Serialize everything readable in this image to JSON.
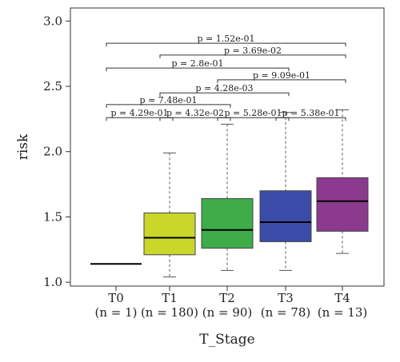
{
  "chart_data": {
    "type": "boxplot",
    "title": "",
    "xlabel": "T_Stage",
    "ylabel": "risk",
    "ylim": [
      0.97,
      3.1
    ],
    "yticks": [
      "1.0",
      "1.5",
      "2.0",
      "2.5",
      "3.0"
    ],
    "ytick_values": [
      1.0,
      1.5,
      2.0,
      2.5,
      3.0
    ],
    "groups": [
      {
        "name": "T0",
        "n_label": "(n = 1)",
        "color": "#000000",
        "min": 1.14,
        "q1": 1.14,
        "median": 1.14,
        "q3": 1.14,
        "max": 1.14,
        "single": true
      },
      {
        "name": "T1",
        "n_label": "(n = 180)",
        "color": "#c8d72a",
        "min": 1.04,
        "q1": 1.21,
        "median": 1.34,
        "q3": 1.53,
        "max": 1.99
      },
      {
        "name": "T2",
        "n_label": "(n = 90)",
        "color": "#3fac4a",
        "min": 1.09,
        "q1": 1.26,
        "median": 1.4,
        "q3": 1.64,
        "max": 2.21
      },
      {
        "name": "T3",
        "n_label": "(n = 78)",
        "color": "#3b4ca8",
        "min": 1.09,
        "q1": 1.31,
        "median": 1.46,
        "q3": 1.7,
        "max": 2.3
      },
      {
        "name": "T4",
        "n_label": "(n = 13)",
        "color": "#8b3a8e",
        "min": 1.22,
        "q1": 1.39,
        "median": 1.62,
        "q3": 1.8,
        "max": 2.32
      }
    ],
    "comparisons": [
      {
        "from": 0,
        "to": 4,
        "y": 2.83,
        "label": "p = 1.52e-01"
      },
      {
        "from": 1,
        "to": 4,
        "y": 2.74,
        "label": "p = 3.69e-02"
      },
      {
        "from": 0,
        "to": 3,
        "y": 2.64,
        "label": "p = 2.8e-01"
      },
      {
        "from": 2,
        "to": 4,
        "y": 2.55,
        "label": "p = 9.09e-01"
      },
      {
        "from": 1,
        "to": 3,
        "y": 2.45,
        "label": "p = 4.28e-03"
      },
      {
        "from": 0,
        "to": 2,
        "y": 2.36,
        "label": "p = 7.48e-01"
      },
      {
        "from": 0,
        "to": 1,
        "y": 2.26,
        "label": "p = 4.29e-01"
      },
      {
        "from": 1,
        "to": 2,
        "y": 2.26,
        "label": "p = 4.32e-02"
      },
      {
        "from": 2,
        "to": 3,
        "y": 2.26,
        "label": "p = 5.28e-01"
      },
      {
        "from": 3,
        "to": 4,
        "y": 2.26,
        "label": "p = 5.38e-01"
      }
    ]
  }
}
